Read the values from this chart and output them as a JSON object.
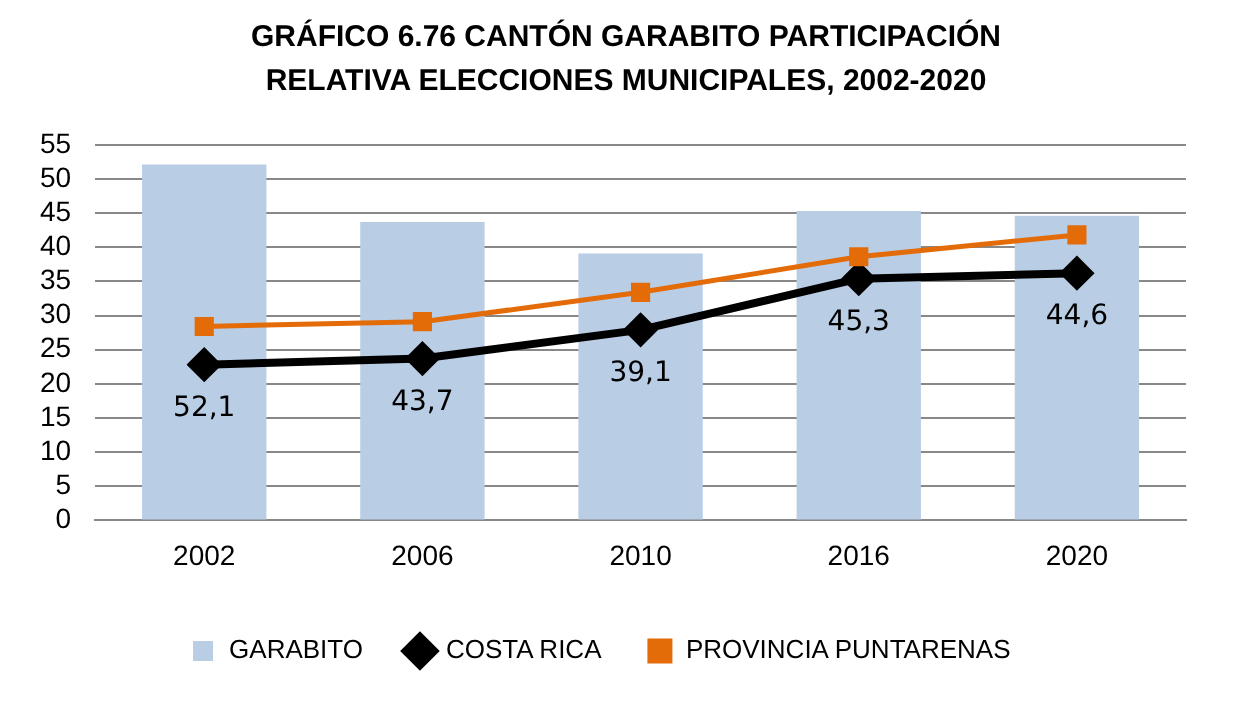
{
  "chart_data": {
    "type": "bar",
    "title": "GRÁFICO 6.76 CANTÓN  GARABITO PARTICIPACIÓN RELATIVA ELECCIONES MUNICIPALES, 2002-2020",
    "categories": [
      "2002",
      "2006",
      "2010",
      "2016",
      "2020"
    ],
    "series": [
      {
        "name": "GARABITO",
        "color": "#b9cde5",
        "values": [
          52.1,
          43.7,
          39.1,
          45.3,
          44.6
        ],
        "value_labels": [
          "52,1",
          "43,7",
          "39,1",
          "45,3",
          "44,6"
        ]
      },
      {
        "name": "COSTA RICA",
        "type": "line",
        "color": "#000000",
        "marker": "diamond",
        "values": [
          22.8,
          23.7,
          27.9,
          35.4,
          36.2
        ]
      },
      {
        "name": "PROVINCIA PUNTARENAS",
        "type": "line",
        "color": "#e36c09",
        "marker": "square",
        "values": [
          28.4,
          29.1,
          33.4,
          38.6,
          41.8
        ]
      }
    ],
    "ylim": [
      0,
      55
    ],
    "yticks": [
      0,
      5,
      10,
      15,
      20,
      25,
      30,
      35,
      40,
      45,
      50,
      55
    ],
    "grid": "y",
    "legend": "bottom"
  }
}
